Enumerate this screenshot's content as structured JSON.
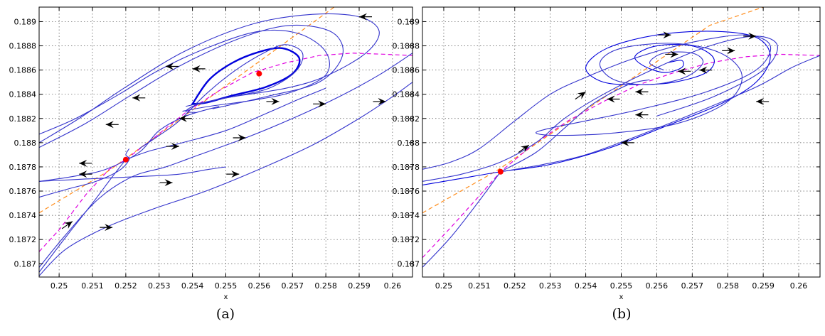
{
  "chart_data": [
    {
      "type": "line",
      "panel": "(a)",
      "caption": "(a)",
      "xlabel": "x",
      "ylabel": "",
      "xlim": [
        0.2494,
        0.2606
      ],
      "ylim": [
        0.18689,
        0.18912
      ],
      "grid": true,
      "x_ticks": [
        0.25,
        0.251,
        0.252,
        0.253,
        0.254,
        0.255,
        0.256,
        0.257,
        0.258,
        0.259,
        0.26
      ],
      "x_tick_labels": [
        "0.25",
        "0.251",
        "0.252",
        "0.253",
        "0.254",
        "0.255",
        "0.256",
        "0.257",
        "0.258",
        "0.259",
        "0.26"
      ],
      "y_ticks": [
        0.187,
        0.1872,
        0.1874,
        0.1876,
        0.1878,
        0.188,
        0.1882,
        0.1884,
        0.1886,
        0.1888,
        0.189
      ],
      "y_tick_labels": [
        "0.187",
        "0.1872",
        "0.1874",
        "0.1876",
        "0.1878",
        "0.188",
        "0.1882",
        "0.1884",
        "0.1886",
        "0.1888",
        "0.189"
      ],
      "nullclines": [
        {
          "color": "#ff8c1a",
          "style": "dashed",
          "x": [
            0.2494,
            0.2515,
            0.2535,
            0.2555,
            0.2575,
            0.2595
          ],
          "y": [
            0.18742,
            0.18777,
            0.18817,
            0.18857,
            0.18897,
            0.18937
          ]
        },
        {
          "color": "#e000e0",
          "style": "dashed",
          "x": [
            0.2494,
            0.25,
            0.2508,
            0.2515,
            0.252,
            0.2528,
            0.2538,
            0.2548,
            0.2558,
            0.2568,
            0.2578,
            0.2588,
            0.2598,
            0.2606
          ],
          "y": [
            0.1871,
            0.18728,
            0.18757,
            0.18778,
            0.18786,
            0.18803,
            0.18825,
            0.18843,
            0.18858,
            0.18866,
            0.18872,
            0.18874,
            0.18873,
            0.18872
          ]
        }
      ],
      "equilibria": [
        {
          "x": 0.252,
          "y": 0.18786,
          "color": "#ff0000"
        },
        {
          "x": 0.256,
          "y": 0.18857,
          "color": "#ff0000"
        }
      ],
      "trajectories": [
        {
          "color": "#0000dd",
          "closed": true,
          "x": [
            0.254,
            0.2545,
            0.2552,
            0.256,
            0.2567,
            0.2572,
            0.257,
            0.2562,
            0.2552,
            0.2544,
            0.254
          ],
          "y": [
            0.18832,
            0.18852,
            0.18866,
            0.18875,
            0.18878,
            0.1887,
            0.18857,
            0.18846,
            0.18839,
            0.18833,
            0.18832
          ]
        },
        {
          "color": "#3333cc",
          "x": [
            0.2524,
            0.253,
            0.2536,
            0.2544,
            0.2553,
            0.2562,
            0.2568,
            0.2573,
            0.2571,
            0.2563,
            0.2552,
            0.2542,
            0.2538,
            0.2541
          ],
          "y": [
            0.18795,
            0.18806,
            0.18818,
            0.1884,
            0.1886,
            0.18875,
            0.18881,
            0.18874,
            0.18859,
            0.18845,
            0.18838,
            0.18832,
            0.18826,
            0.18825
          ]
        },
        {
          "color": "#3333cc",
          "x": [
            0.2494,
            0.2505,
            0.2518,
            0.253,
            0.2545,
            0.256,
            0.2572,
            0.258,
            0.258,
            0.257,
            0.2558,
            0.2545,
            0.2537
          ],
          "y": [
            0.18807,
            0.1882,
            0.1884,
            0.1886,
            0.18879,
            0.18892,
            0.1889,
            0.18875,
            0.18856,
            0.18842,
            0.18835,
            0.1883,
            0.18826
          ]
        },
        {
          "color": "#3333cc",
          "x": [
            0.2494,
            0.2508,
            0.2522,
            0.2538,
            0.2556,
            0.257,
            0.2582,
            0.2585,
            0.2578,
            0.2562,
            0.2546
          ],
          "y": [
            0.18796,
            0.18816,
            0.1884,
            0.18866,
            0.18888,
            0.18897,
            0.18891,
            0.18872,
            0.1885,
            0.18838,
            0.18828
          ]
        },
        {
          "color": "#3333cc",
          "x": [
            0.2494,
            0.2506,
            0.252,
            0.2538,
            0.2558,
            0.2576,
            0.259,
            0.2596,
            0.2592,
            0.258,
            0.2568,
            0.255,
            0.2538
          ],
          "y": [
            0.188,
            0.1882,
            0.18846,
            0.18876,
            0.18898,
            0.18906,
            0.18904,
            0.18892,
            0.18874,
            0.18855,
            0.18845,
            0.18837,
            0.1883
          ]
        },
        {
          "color": "#3333cc",
          "x": [
            0.2494,
            0.2504,
            0.2514,
            0.2524,
            0.253,
            0.2538,
            0.2548
          ],
          "y": [
            0.18768,
            0.18772,
            0.18778,
            0.18792,
            0.1881,
            0.18822,
            0.1883
          ]
        },
        {
          "color": "#3333cc",
          "x": [
            0.2494,
            0.2503,
            0.2511,
            0.2518,
            0.2521,
            0.252,
            0.2521
          ],
          "y": [
            0.18755,
            0.18762,
            0.18768,
            0.18777,
            0.18786,
            0.1879,
            0.18795
          ]
        },
        {
          "color": "#3333cc",
          "x": [
            0.2494,
            0.2502,
            0.251,
            0.2516,
            0.252
          ],
          "y": [
            0.18693,
            0.18722,
            0.1875,
            0.18772,
            0.18786
          ]
        },
        {
          "color": "#3333cc",
          "x": [
            0.252,
            0.2527,
            0.2537,
            0.255,
            0.2562,
            0.2572,
            0.258
          ],
          "y": [
            0.18786,
            0.18793,
            0.188,
            0.1881,
            0.18824,
            0.18836,
            0.18845
          ]
        },
        {
          "color": "#3333cc",
          "x": [
            0.2494,
            0.2502,
            0.2512,
            0.2522,
            0.2532,
            0.2542,
            0.2556,
            0.257,
            0.2584,
            0.2596,
            0.2606
          ],
          "y": [
            0.18697,
            0.18724,
            0.18754,
            0.18772,
            0.1878,
            0.1879,
            0.18804,
            0.1882,
            0.18838,
            0.18856,
            0.18874
          ]
        },
        {
          "color": "#3333cc",
          "x": [
            0.2494,
            0.2502,
            0.2514,
            0.2528,
            0.2544,
            0.256,
            0.2576,
            0.259,
            0.26,
            0.2606
          ],
          "y": [
            0.1869,
            0.18712,
            0.1873,
            0.18745,
            0.1876,
            0.18778,
            0.18798,
            0.1882,
            0.18838,
            0.1885
          ]
        },
        {
          "color": "#3333cc",
          "x": [
            0.2494,
            0.2508,
            0.2524,
            0.2536,
            0.2545,
            0.255
          ],
          "y": [
            0.18768,
            0.1877,
            0.18772,
            0.18774,
            0.18778,
            0.1878
          ]
        }
      ],
      "direction_arrows": [
        {
          "x": 0.259,
          "y": 0.18904,
          "dir": "left"
        },
        {
          "x": 0.254,
          "y": 0.18861,
          "dir": "left"
        },
        {
          "x": 0.2532,
          "y": 0.18863,
          "dir": "left"
        },
        {
          "x": 0.2522,
          "y": 0.18837,
          "dir": "left"
        },
        {
          "x": 0.2514,
          "y": 0.18815,
          "dir": "left"
        },
        {
          "x": 0.2536,
          "y": 0.1882,
          "dir": "left"
        },
        {
          "x": 0.2506,
          "y": 0.18783,
          "dir": "left"
        },
        {
          "x": 0.2506,
          "y": 0.18774,
          "dir": "left"
        },
        {
          "x": 0.2566,
          "y": 0.18834,
          "dir": "right"
        },
        {
          "x": 0.2536,
          "y": 0.18797,
          "dir": "right"
        },
        {
          "x": 0.2556,
          "y": 0.18804,
          "dir": "right"
        },
        {
          "x": 0.258,
          "y": 0.18832,
          "dir": "right"
        },
        {
          "x": 0.2598,
          "y": 0.18834,
          "dir": "right"
        },
        {
          "x": 0.2534,
          "y": 0.18767,
          "dir": "right"
        },
        {
          "x": 0.2554,
          "y": 0.18774,
          "dir": "right"
        },
        {
          "x": 0.2516,
          "y": 0.1873,
          "dir": "right"
        },
        {
          "x": 0.2504,
          "y": 0.18735,
          "dir": "up"
        }
      ]
    },
    {
      "type": "line",
      "panel": "(b)",
      "caption": "(b)",
      "xlabel": "x",
      "ylabel": "",
      "xlim": [
        0.2494,
        0.2606
      ],
      "ylim": [
        0.18689,
        0.18912
      ],
      "grid": true,
      "x_ticks": [
        0.25,
        0.251,
        0.252,
        0.253,
        0.254,
        0.255,
        0.256,
        0.257,
        0.258,
        0.259,
        0.26
      ],
      "x_tick_labels": [
        "0.25",
        "0.251",
        "0.252",
        "0.253",
        "0.254",
        "0.255",
        "0.256",
        "0.257",
        "0.258",
        "0.259",
        "0.26"
      ],
      "y_ticks": [
        0.187,
        0.1872,
        0.1874,
        0.1876,
        0.1878,
        0.188,
        0.1882,
        0.1884,
        0.1886,
        0.1888,
        0.189
      ],
      "y_tick_labels": [
        "0.187",
        "0.1872",
        "0.1874",
        "0.1876",
        "0.1878",
        "0.188",
        "0.1882",
        "0.1884",
        "0.1886",
        "0.1888",
        "0.189"
      ],
      "nullclines": [
        {
          "color": "#ff8c1a",
          "style": "dashed",
          "x": [
            0.2494,
            0.2515,
            0.2535,
            0.2555,
            0.2575,
            0.259
          ],
          "y": [
            0.18742,
            0.18777,
            0.18817,
            0.18857,
            0.18897,
            0.18912
          ]
        },
        {
          "color": "#e000e0",
          "style": "dashed",
          "x": [
            0.2494,
            0.2502,
            0.251,
            0.2516,
            0.2525,
            0.2535,
            0.2545,
            0.2555,
            0.2565,
            0.2575,
            0.2585,
            0.2595,
            0.2606
          ],
          "y": [
            0.18705,
            0.1873,
            0.18756,
            0.18776,
            0.18798,
            0.18818,
            0.18834,
            0.18848,
            0.18858,
            0.18866,
            0.18871,
            0.18873,
            0.18872
          ]
        }
      ],
      "equilibria": [
        {
          "x": 0.2516,
          "y": 0.18776,
          "color": "#ff0000"
        }
      ],
      "trajectories": [
        {
          "color": "#0000dd",
          "x": [
            0.2494,
            0.2504,
            0.2516,
            0.253,
            0.2546,
            0.2562,
            0.2578,
            0.2588,
            0.2592,
            0.2588,
            0.2576,
            0.256,
            0.2546,
            0.254,
            0.2545,
            0.2555,
            0.2565,
            0.2574,
            0.2576,
            0.257,
            0.256,
            0.2554,
            0.2556,
            0.2562,
            0.2567,
            0.2567,
            0.2563
          ],
          "y": [
            0.18765,
            0.1877,
            0.18776,
            0.18782,
            0.18795,
            0.18813,
            0.18832,
            0.1885,
            0.18871,
            0.18887,
            0.18892,
            0.18889,
            0.18878,
            0.18862,
            0.1885,
            0.18848,
            0.1885,
            0.18858,
            0.1887,
            0.1888,
            0.1888,
            0.18872,
            0.18864,
            0.18858,
            0.18862,
            0.18868,
            0.18866
          ]
        },
        {
          "color": "#3333cc",
          "x": [
            0.2494,
            0.2502,
            0.251,
            0.252,
            0.253,
            0.254,
            0.2554,
            0.257,
            0.2585,
            0.2592,
            0.2588,
            0.2574,
            0.2556,
            0.254,
            0.253,
            0.2526,
            0.2532,
            0.2548,
            0.2566,
            0.258,
            0.2584,
            0.2578,
            0.2565,
            0.255,
            0.2544,
            0.2548,
            0.2558,
            0.2568,
            0.2573,
            0.257,
            0.2562,
            0.2558,
            0.2562
          ],
          "y": [
            0.18778,
            0.18784,
            0.18795,
            0.18818,
            0.1884,
            0.18854,
            0.1887,
            0.18883,
            0.18889,
            0.1888,
            0.1886,
            0.18842,
            0.18828,
            0.18818,
            0.18812,
            0.18808,
            0.18806,
            0.18808,
            0.18816,
            0.18834,
            0.18856,
            0.18874,
            0.18882,
            0.18878,
            0.18866,
            0.18852,
            0.18848,
            0.18854,
            0.18866,
            0.18874,
            0.18874,
            0.18866,
            0.1886
          ]
        },
        {
          "color": "#3333cc",
          "x": [
            0.2494,
            0.2505,
            0.2516,
            0.2526,
            0.2534,
            0.2545,
            0.256,
            0.2575,
            0.2588,
            0.2594,
            0.259,
            0.2576,
            0.256
          ],
          "y": [
            0.18768,
            0.18774,
            0.18784,
            0.188,
            0.1882,
            0.1884,
            0.18862,
            0.1888,
            0.18888,
            0.1888,
            0.1886,
            0.18838,
            0.18822
          ]
        },
        {
          "color": "#3333cc",
          "x": [
            0.2494,
            0.2502,
            0.251,
            0.2516
          ],
          "y": [
            0.18697,
            0.18722,
            0.18752,
            0.18776
          ]
        },
        {
          "color": "#3333cc",
          "x": [
            0.2516,
            0.2528,
            0.254,
            0.2555,
            0.2572,
            0.2588,
            0.2598,
            0.2606
          ],
          "y": [
            0.18776,
            0.18782,
            0.1879,
            0.18806,
            0.18826,
            0.18846,
            0.18862,
            0.18872
          ]
        },
        {
          "color": "#3333cc",
          "x": [
            0.2516,
            0.2526,
            0.2534,
            0.2542,
            0.2552,
            0.2558
          ],
          "y": [
            0.18776,
            0.18792,
            0.18812,
            0.18832,
            0.18848,
            0.18852
          ]
        }
      ],
      "direction_arrows": [
        {
          "x": 0.2564,
          "y": 0.18889,
          "dir": "right"
        },
        {
          "x": 0.2588,
          "y": 0.18888,
          "dir": "right"
        },
        {
          "x": 0.2582,
          "y": 0.18876,
          "dir": "right"
        },
        {
          "x": 0.2566,
          "y": 0.18873,
          "dir": "right"
        },
        {
          "x": 0.2572,
          "y": 0.1886,
          "dir": "left"
        },
        {
          "x": 0.2566,
          "y": 0.18859,
          "dir": "left"
        },
        {
          "x": 0.2588,
          "y": 0.18834,
          "dir": "left"
        },
        {
          "x": 0.2554,
          "y": 0.18823,
          "dir": "left"
        },
        {
          "x": 0.2554,
          "y": 0.18842,
          "dir": "left"
        },
        {
          "x": 0.2546,
          "y": 0.18836,
          "dir": "left"
        },
        {
          "x": 0.255,
          "y": 0.188,
          "dir": "left"
        },
        {
          "x": 0.254,
          "y": 0.18842,
          "dir": "up"
        },
        {
          "x": 0.2524,
          "y": 0.18798,
          "dir": "up"
        }
      ]
    }
  ]
}
